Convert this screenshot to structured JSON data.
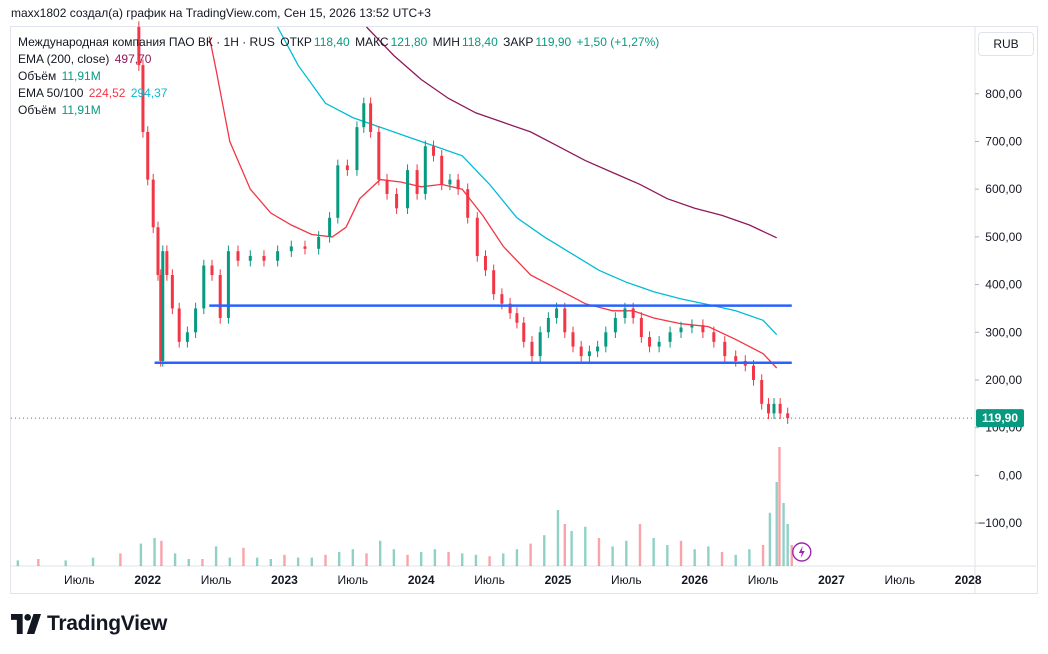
{
  "header": {
    "attribution": "maxx1802 создал(а) график на TradingView.com, Сен 15, 2026 13:52 UTC+3"
  },
  "legend": {
    "symbol": "Международная компания ПАО ВК · 1H · RUS",
    "open_label": "ОТКР",
    "open_value": "118,40",
    "high_label": "МАКС",
    "high_value": "121,80",
    "low_label": "МИН",
    "low_value": "118,40",
    "close_label": "ЗАКР",
    "close_value": "119,90",
    "change": "+1,50 (+1,27%)",
    "ema200_label": "EMA (200, close)",
    "ema200_value": "497,70",
    "volume_label": "Объём",
    "volume_value": "11,91M",
    "ema50_100_label": "EMA 50/100",
    "ema50_value": "224,52",
    "ema100_value": "294,37",
    "volume2_label": "Объём",
    "volume2_value": "11,91M"
  },
  "currency": "RUB",
  "price_label": "119,90",
  "footer": {
    "brand": "TradingView"
  },
  "colors": {
    "up": "#089981",
    "down": "#f23645",
    "level_lines": "#2962ff",
    "ema50": "#f23645",
    "ema100": "#00bcd4",
    "ema200": "#8e1a5a",
    "price_label_bg": "#089981"
  },
  "icons": {
    "brand_logo": "tradingview-logo-icon",
    "flash": "lightning-icon"
  },
  "chart_data": {
    "type": "candlestick",
    "y_ticks": [
      "800,00",
      "700,00",
      "600,00",
      "500,00",
      "400,00",
      "300,00",
      "200,00",
      "100,00",
      "0,00",
      "−100,00"
    ],
    "y_tick_values": [
      800,
      700,
      600,
      500,
      400,
      300,
      200,
      100,
      0,
      -100
    ],
    "x_ticks": [
      "Июль",
      "2022",
      "Июль",
      "2023",
      "Июль",
      "2024",
      "Июль",
      "2025",
      "Июль",
      "2026",
      "Июль",
      "2027",
      "Июль",
      "2028"
    ],
    "x_tick_values": [
      2021.5,
      2022.0,
      2022.5,
      2023.0,
      2023.5,
      2024.0,
      2024.5,
      2025.0,
      2025.5,
      2026.0,
      2026.5,
      2027.0,
      2027.5,
      2028.0
    ],
    "ylim": [
      -190,
      940
    ],
    "xlim": [
      2021.0,
      2028.05
    ],
    "last_close": 119.9,
    "price_path": [
      [
        2021.92,
        940
      ],
      [
        2021.95,
        860
      ],
      [
        2021.98,
        720
      ],
      [
        2022.02,
        620
      ],
      [
        2022.06,
        520
      ],
      [
        2022.09,
        420
      ],
      [
        2022.1,
        240
      ],
      [
        2022.12,
        470
      ],
      [
        2022.16,
        420
      ],
      [
        2022.2,
        350
      ],
      [
        2022.26,
        280
      ],
      [
        2022.32,
        300
      ],
      [
        2022.38,
        350
      ],
      [
        2022.44,
        440
      ],
      [
        2022.5,
        420
      ],
      [
        2022.56,
        330
      ],
      [
        2022.62,
        470
      ],
      [
        2022.7,
        450
      ],
      [
        2022.8,
        460
      ],
      [
        2022.9,
        450
      ],
      [
        2023.0,
        470
      ],
      [
        2023.1,
        480
      ],
      [
        2023.2,
        475
      ],
      [
        2023.3,
        500
      ],
      [
        2023.36,
        540
      ],
      [
        2023.42,
        650
      ],
      [
        2023.5,
        640
      ],
      [
        2023.56,
        730
      ],
      [
        2023.6,
        780
      ],
      [
        2023.66,
        720
      ],
      [
        2023.72,
        620
      ],
      [
        2023.78,
        590
      ],
      [
        2023.86,
        560
      ],
      [
        2023.94,
        640
      ],
      [
        2024.0,
        590
      ],
      [
        2024.06,
        690
      ],
      [
        2024.12,
        670
      ],
      [
        2024.18,
        610
      ],
      [
        2024.24,
        620
      ],
      [
        2024.3,
        600
      ],
      [
        2024.38,
        540
      ],
      [
        2024.44,
        460
      ],
      [
        2024.5,
        430
      ],
      [
        2024.56,
        380
      ],
      [
        2024.62,
        360
      ],
      [
        2024.68,
        340
      ],
      [
        2024.72,
        320
      ],
      [
        2024.78,
        280
      ],
      [
        2024.84,
        250
      ],
      [
        2024.9,
        300
      ],
      [
        2024.96,
        330
      ],
      [
        2025.02,
        350
      ],
      [
        2025.08,
        300
      ],
      [
        2025.14,
        270
      ],
      [
        2025.2,
        250
      ],
      [
        2025.26,
        260
      ],
      [
        2025.32,
        270
      ],
      [
        2025.38,
        300
      ],
      [
        2025.46,
        330
      ],
      [
        2025.52,
        350
      ],
      [
        2025.58,
        330
      ],
      [
        2025.64,
        290
      ],
      [
        2025.7,
        270
      ],
      [
        2025.78,
        280
      ],
      [
        2025.86,
        300
      ],
      [
        2025.94,
        310
      ],
      [
        2026.02,
        315
      ],
      [
        2026.1,
        300
      ],
      [
        2026.18,
        280
      ],
      [
        2026.26,
        250
      ],
      [
        2026.34,
        240
      ],
      [
        2026.4,
        230
      ],
      [
        2026.46,
        200
      ],
      [
        2026.52,
        150
      ],
      [
        2026.56,
        130
      ],
      [
        2026.6,
        150
      ],
      [
        2026.65,
        130
      ],
      [
        2026.71,
        119.9
      ]
    ],
    "ema50": [
      [
        2022.45,
        920
      ],
      [
        2022.5,
        850
      ],
      [
        2022.6,
        700
      ],
      [
        2022.75,
        600
      ],
      [
        2022.9,
        550
      ],
      [
        2023.05,
        525
      ],
      [
        2023.2,
        505
      ],
      [
        2023.35,
        500
      ],
      [
        2023.45,
        520
      ],
      [
        2023.55,
        580
      ],
      [
        2023.7,
        620
      ],
      [
        2023.85,
        615
      ],
      [
        2024.0,
        605
      ],
      [
        2024.15,
        610
      ],
      [
        2024.3,
        600
      ],
      [
        2024.45,
        545
      ],
      [
        2024.6,
        480
      ],
      [
        2024.8,
        420
      ],
      [
        2025.0,
        390
      ],
      [
        2025.2,
        360
      ],
      [
        2025.4,
        345
      ],
      [
        2025.55,
        345
      ],
      [
        2025.7,
        330
      ],
      [
        2025.9,
        318
      ],
      [
        2026.1,
        312
      ],
      [
        2026.3,
        285
      ],
      [
        2026.5,
        255
      ],
      [
        2026.6,
        225
      ]
    ],
    "ema100": [
      [
        2022.95,
        940
      ],
      [
        2023.1,
        860
      ],
      [
        2023.3,
        780
      ],
      [
        2023.5,
        750
      ],
      [
        2023.7,
        730
      ],
      [
        2023.9,
        710
      ],
      [
        2024.1,
        690
      ],
      [
        2024.3,
        670
      ],
      [
        2024.5,
        610
      ],
      [
        2024.7,
        540
      ],
      [
        2024.9,
        500
      ],
      [
        2025.1,
        465
      ],
      [
        2025.3,
        430
      ],
      [
        2025.5,
        405
      ],
      [
        2025.7,
        385
      ],
      [
        2025.9,
        370
      ],
      [
        2026.1,
        358
      ],
      [
        2026.3,
        345
      ],
      [
        2026.5,
        325
      ],
      [
        2026.6,
        295
      ]
    ],
    "ema200": [
      [
        2023.6,
        940
      ],
      [
        2023.8,
        880
      ],
      [
        2024.0,
        830
      ],
      [
        2024.2,
        790
      ],
      [
        2024.4,
        760
      ],
      [
        2024.6,
        740
      ],
      [
        2024.8,
        720
      ],
      [
        2025.0,
        690
      ],
      [
        2025.2,
        660
      ],
      [
        2025.4,
        635
      ],
      [
        2025.6,
        610
      ],
      [
        2025.8,
        580
      ],
      [
        2026.0,
        560
      ],
      [
        2026.2,
        545
      ],
      [
        2026.4,
        525
      ],
      [
        2026.6,
        498
      ]
    ],
    "horizontal_levels": [
      {
        "value": 356,
        "x_start": 2022.45,
        "x_end": 2026.71
      },
      {
        "value": 236,
        "x_start": 2022.05,
        "x_end": 2026.71
      }
    ],
    "volume": [
      [
        2021.05,
        4
      ],
      [
        2021.2,
        5
      ],
      [
        2021.4,
        4
      ],
      [
        2021.6,
        6
      ],
      [
        2021.8,
        9
      ],
      [
        2021.95,
        16
      ],
      [
        2022.05,
        20
      ],
      [
        2022.1,
        18
      ],
      [
        2022.2,
        9
      ],
      [
        2022.3,
        5
      ],
      [
        2022.4,
        5
      ],
      [
        2022.5,
        14
      ],
      [
        2022.6,
        6
      ],
      [
        2022.7,
        13
      ],
      [
        2022.8,
        6
      ],
      [
        2022.9,
        5
      ],
      [
        2023.0,
        8
      ],
      [
        2023.1,
        6
      ],
      [
        2023.2,
        6
      ],
      [
        2023.3,
        8
      ],
      [
        2023.4,
        10
      ],
      [
        2023.5,
        12
      ],
      [
        2023.6,
        9
      ],
      [
        2023.7,
        18
      ],
      [
        2023.8,
        12
      ],
      [
        2023.9,
        8
      ],
      [
        2024.0,
        10
      ],
      [
        2024.1,
        12
      ],
      [
        2024.2,
        10
      ],
      [
        2024.3,
        9
      ],
      [
        2024.4,
        8
      ],
      [
        2024.5,
        7
      ],
      [
        2024.6,
        9
      ],
      [
        2024.7,
        12
      ],
      [
        2024.8,
        16
      ],
      [
        2024.9,
        22
      ],
      [
        2025.0,
        40
      ],
      [
        2025.05,
        30
      ],
      [
        2025.1,
        25
      ],
      [
        2025.2,
        28
      ],
      [
        2025.3,
        20
      ],
      [
        2025.4,
        14
      ],
      [
        2025.5,
        18
      ],
      [
        2025.6,
        30
      ],
      [
        2025.7,
        20
      ],
      [
        2025.8,
        15
      ],
      [
        2025.9,
        18
      ],
      [
        2026.0,
        12
      ],
      [
        2026.1,
        14
      ],
      [
        2026.2,
        10
      ],
      [
        2026.3,
        8
      ],
      [
        2026.4,
        12
      ],
      [
        2026.5,
        15
      ],
      [
        2026.55,
        38
      ],
      [
        2026.6,
        60
      ],
      [
        2026.62,
        85
      ],
      [
        2026.65,
        45
      ],
      [
        2026.68,
        30
      ],
      [
        2026.71,
        15
      ]
    ]
  }
}
